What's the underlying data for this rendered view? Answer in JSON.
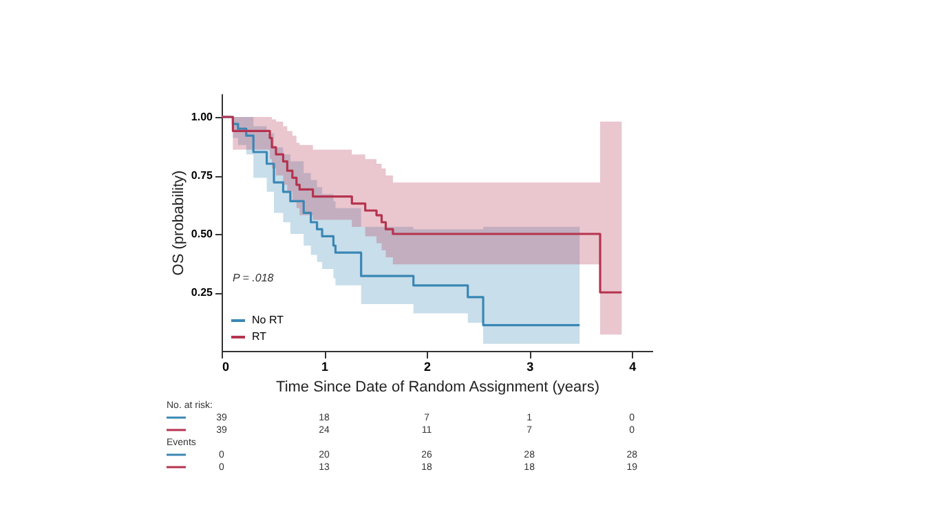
{
  "chart_data": {
    "type": "step",
    "ylabel": "OS (probability)",
    "xlabel": "Time Since Date of Random Assignment (years)",
    "xlim": [
      0,
      4.2
    ],
    "xticks": [
      0,
      1,
      2,
      3,
      4
    ],
    "ylim": [
      0,
      1.1
    ],
    "yticks": [
      {
        "value": 0.25,
        "label": "0.25"
      },
      {
        "value": 0.5,
        "label": "0.50"
      },
      {
        "value": 0.75,
        "label": "0.75"
      },
      {
        "value": 1,
        "label": "1.00"
      }
    ],
    "legend": "bottom left",
    "grid": false,
    "series": [
      {
        "name": "No RT",
        "color": "#3a87b5",
        "x": [
          0,
          0.11,
          0.16,
          0.24,
          0.31,
          0.44,
          0.51,
          0.6,
          0.67,
          0.8,
          0.87,
          0.93,
          0.98,
          1.09,
          1.11,
          1.36,
          1.87,
          2.4,
          2.55,
          3.49
        ],
        "values": [
          1,
          0.97,
          0.95,
          0.92,
          0.85,
          0.8,
          0.72,
          0.68,
          0.64,
          0.59,
          0.55,
          0.52,
          0.49,
          0.45,
          0.42,
          0.32,
          0.28,
          0.23,
          0.11,
          0.11
        ],
        "upper": [
          1,
          1,
          1,
          1,
          0.96,
          0.93,
          0.87,
          0.84,
          0.81,
          0.76,
          0.73,
          0.7,
          0.67,
          0.64,
          0.61,
          0.53,
          0.52,
          0.52,
          0.53,
          0.53
        ],
        "lower": [
          1,
          0.91,
          0.88,
          0.84,
          0.74,
          0.68,
          0.59,
          0.55,
          0.5,
          0.45,
          0.41,
          0.38,
          0.35,
          0.31,
          0.28,
          0.2,
          0.16,
          0.12,
          0.03,
          0.03
        ]
      },
      {
        "name": "RT",
        "color": "#b5334f",
        "x": [
          0,
          0.11,
          0.47,
          0.49,
          0.53,
          0.6,
          0.64,
          0.69,
          0.73,
          0.76,
          0.89,
          1.27,
          1.4,
          1.51,
          1.56,
          1.6,
          1.67,
          3.69,
          3.9
        ],
        "values": [
          1,
          0.94,
          0.91,
          0.87,
          0.84,
          0.81,
          0.77,
          0.74,
          0.71,
          0.69,
          0.66,
          0.63,
          0.6,
          0.58,
          0.55,
          0.52,
          0.5,
          0.25,
          0.25
        ],
        "upper": [
          1,
          1,
          1,
          0.99,
          0.98,
          0.96,
          0.94,
          0.92,
          0.89,
          0.88,
          0.86,
          0.84,
          0.82,
          0.8,
          0.78,
          0.75,
          0.72,
          0.98,
          0.98
        ],
        "lower": [
          1,
          0.86,
          0.82,
          0.78,
          0.75,
          0.71,
          0.68,
          0.64,
          0.61,
          0.58,
          0.56,
          0.53,
          0.49,
          0.46,
          0.43,
          0.4,
          0.37,
          0.07,
          0.07
        ]
      }
    ],
    "annotations": [
      "P = .018",
      "No. at risk:",
      "39",
      "18",
      "7",
      "1",
      "0",
      "39",
      "24",
      "11",
      "7",
      "0",
      "Events",
      "0",
      "20",
      "26",
      "28",
      "28",
      "0",
      "13",
      "18",
      "18",
      "19"
    ]
  }
}
